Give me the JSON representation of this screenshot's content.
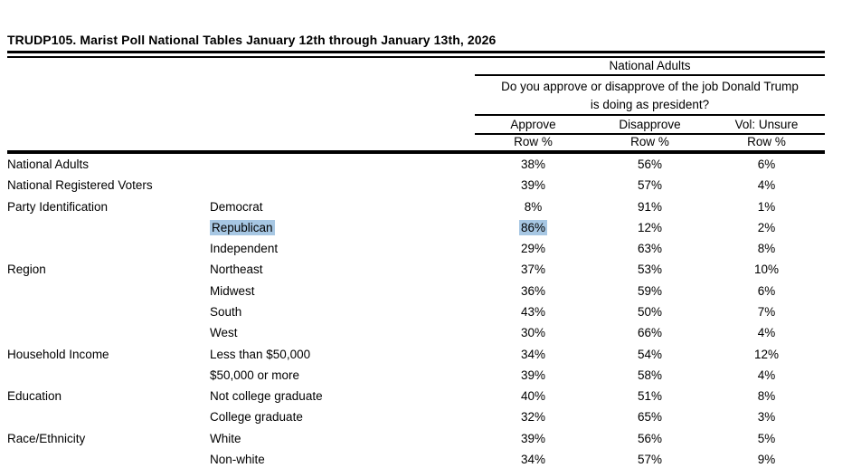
{
  "page": {
    "title": "TRUDP105. Marist Poll National Tables January 12th through January 13th, 2026"
  },
  "table": {
    "population_header": "National Adults",
    "question_line1": "Do you approve or disapprove of the job Donald Trump",
    "question_line2": "is doing as president?",
    "columns": [
      "Approve",
      "Disapprove",
      "Vol: Unsure"
    ],
    "unit_row": [
      "Row %",
      "Row %",
      "Row %"
    ],
    "highlight_color": "#a7c7e3",
    "rows": [
      {
        "group": "National Adults",
        "category": "",
        "values": [
          "38%",
          "56%",
          "6%"
        ],
        "highlight": false
      },
      {
        "group": "National Registered Voters",
        "category": "",
        "values": [
          "39%",
          "57%",
          "4%"
        ],
        "highlight": false
      },
      {
        "group": "Party Identification",
        "category": "Democrat",
        "values": [
          "8%",
          "91%",
          "1%"
        ],
        "highlight": false
      },
      {
        "group": "",
        "category": "Republican",
        "values": [
          "86%",
          "12%",
          "2%"
        ],
        "highlight": true
      },
      {
        "group": "",
        "category": "Independent",
        "values": [
          "29%",
          "63%",
          "8%"
        ],
        "highlight": false
      },
      {
        "group": "Region",
        "category": "Northeast",
        "values": [
          "37%",
          "53%",
          "10%"
        ],
        "highlight": false
      },
      {
        "group": "",
        "category": "Midwest",
        "values": [
          "36%",
          "59%",
          "6%"
        ],
        "highlight": false
      },
      {
        "group": "",
        "category": "South",
        "values": [
          "43%",
          "50%",
          "7%"
        ],
        "highlight": false
      },
      {
        "group": "",
        "category": "West",
        "values": [
          "30%",
          "66%",
          "4%"
        ],
        "highlight": false
      },
      {
        "group": "Household Income",
        "category": "Less than $50,000",
        "values": [
          "34%",
          "54%",
          "12%"
        ],
        "highlight": false
      },
      {
        "group": "",
        "category": "$50,000 or more",
        "values": [
          "39%",
          "58%",
          "4%"
        ],
        "highlight": false
      },
      {
        "group": "Education",
        "category": "Not college graduate",
        "values": [
          "40%",
          "51%",
          "8%"
        ],
        "highlight": false
      },
      {
        "group": "",
        "category": "College graduate",
        "values": [
          "32%",
          "65%",
          "3%"
        ],
        "highlight": false
      },
      {
        "group": "Race/Ethnicity",
        "category": "White",
        "values": [
          "39%",
          "56%",
          "5%"
        ],
        "highlight": false
      },
      {
        "group": "",
        "category": "Non-white",
        "values": [
          "34%",
          "57%",
          "9%"
        ],
        "highlight": false
      }
    ]
  }
}
